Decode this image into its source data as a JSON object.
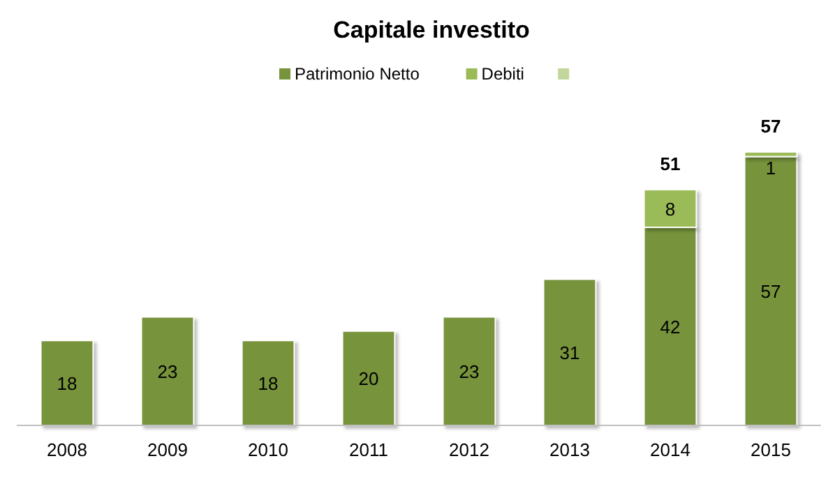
{
  "chart_data": {
    "type": "bar",
    "title": "Capitale investito",
    "categories": [
      "2008",
      "2009",
      "2010",
      "2011",
      "2012",
      "2013",
      "2014",
      "2015"
    ],
    "stacked": true,
    "data_labels": true,
    "legend": "top",
    "series": [
      {
        "name": "Patrimonio Netto",
        "color": "#77933c",
        "values": [
          18,
          23,
          18,
          20,
          23,
          31,
          42,
          57
        ]
      },
      {
        "name": "Debiti",
        "color": "#9bbb59",
        "values": [
          null,
          null,
          null,
          null,
          null,
          null,
          8,
          1
        ]
      },
      {
        "color": "#c3d69b",
        "values": [
          null,
          null,
          null,
          null,
          null,
          null,
          null,
          null
        ]
      }
    ],
    "totals": [
      null,
      null,
      null,
      null,
      null,
      null,
      "51",
      "57"
    ]
  }
}
